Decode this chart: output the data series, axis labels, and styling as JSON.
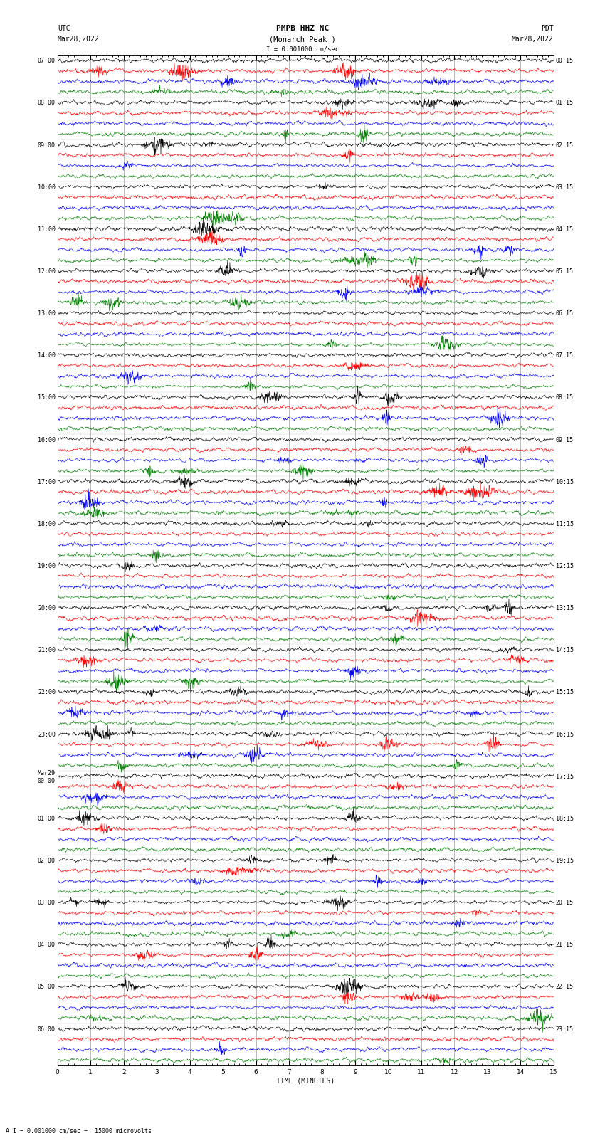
{
  "title_line1": "PMPB HHZ NC",
  "title_line2": "(Monarch Peak )",
  "scale_label": "I = 0.001000 cm/sec",
  "footer_label": "A I = 0.001000 cm/sec =  15000 microvolts",
  "utc_label": "UTC",
  "pdt_label": "PDT",
  "date_left": "Mar28,2022",
  "date_right": "Mar28,2022",
  "xlabel": "TIME (MINUTES)",
  "background_color": "#ffffff",
  "trace_colors": [
    "black",
    "red",
    "blue",
    "green"
  ],
  "minutes_per_row": 15,
  "fig_width": 8.5,
  "fig_height": 16.13,
  "left_labels_utc": [
    "07:00",
    "08:00",
    "09:00",
    "10:00",
    "11:00",
    "12:00",
    "13:00",
    "14:00",
    "15:00",
    "16:00",
    "17:00",
    "18:00",
    "19:00",
    "20:00",
    "21:00",
    "22:00",
    "23:00",
    "Mar29\n00:00",
    "01:00",
    "02:00",
    "03:00",
    "04:00",
    "05:00",
    "06:00"
  ],
  "right_labels_pdt": [
    "00:15",
    "01:15",
    "02:15",
    "03:15",
    "04:15",
    "05:15",
    "06:15",
    "07:15",
    "08:15",
    "09:15",
    "10:15",
    "11:15",
    "12:15",
    "13:15",
    "14:15",
    "15:15",
    "16:15",
    "17:15",
    "18:15",
    "19:15",
    "20:15",
    "21:15",
    "22:15",
    "23:15"
  ],
  "noise_amplitude": 0.3,
  "seed": 42
}
